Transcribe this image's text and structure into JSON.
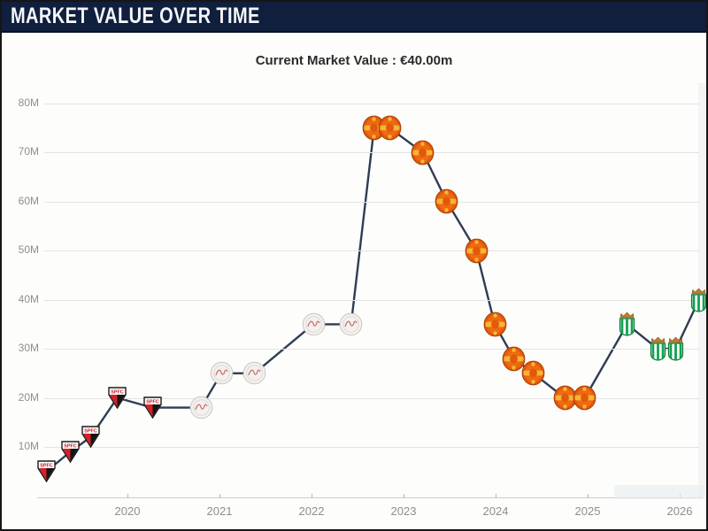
{
  "header": {
    "title": "MARKET VALUE OVER TIME"
  },
  "subtitle": {
    "text": "Current Market Value : €40.00m"
  },
  "colors": {
    "titlebar_bg": "#101f3d",
    "titlebar_text": "#f5f6f8",
    "line": "#2e3d52",
    "grid": "#e3e3e3",
    "axis_text": "#8e8e8e"
  },
  "chart_data": {
    "type": "line",
    "title": "Market value over time",
    "currency": "EUR",
    "current_value_m": 40,
    "grid": true,
    "legend": "none",
    "xlabel": "",
    "ylabel": "",
    "ylim": [
      0,
      85
    ],
    "y_axis": {
      "ticks": [
        {
          "label": "80M",
          "value": 80
        },
        {
          "label": "70M",
          "value": 70
        },
        {
          "label": "60M",
          "value": 60
        },
        {
          "label": "50M",
          "value": 50
        },
        {
          "label": "40M",
          "value": 40
        },
        {
          "label": "30M",
          "value": 30
        },
        {
          "label": "20M",
          "value": 20
        },
        {
          "label": "10M",
          "value": 10
        }
      ]
    },
    "x_axis": {
      "ticks": [
        {
          "label": "2020",
          "year": 2020
        },
        {
          "label": "2021",
          "year": 2021
        },
        {
          "label": "2022",
          "year": 2022
        },
        {
          "label": "2023",
          "year": 2023
        },
        {
          "label": "2024",
          "year": 2024
        },
        {
          "label": "2025",
          "year": 2025
        },
        {
          "label": "2026",
          "year": 2026
        }
      ]
    },
    "series": [
      {
        "name": "market-value-eur-m",
        "points": [
          {
            "year": 2019.12,
            "value_m": 5,
            "club": "sao-paulo-fc"
          },
          {
            "year": 2019.38,
            "value_m": 9,
            "club": "sao-paulo-fc"
          },
          {
            "year": 2019.6,
            "value_m": 12,
            "club": "sao-paulo-fc"
          },
          {
            "year": 2019.89,
            "value_m": 20,
            "club": "sao-paulo-fc"
          },
          {
            "year": 2020.27,
            "value_m": 18,
            "club": "sao-paulo-fc"
          },
          {
            "year": 2020.8,
            "value_m": 18,
            "club": "ajax"
          },
          {
            "year": 2021.02,
            "value_m": 25,
            "club": "ajax"
          },
          {
            "year": 2021.38,
            "value_m": 25,
            "club": "ajax"
          },
          {
            "year": 2022.02,
            "value_m": 35,
            "club": "ajax"
          },
          {
            "year": 2022.43,
            "value_m": 35,
            "club": "ajax"
          },
          {
            "year": 2022.68,
            "value_m": 75,
            "club": "manchester-united"
          },
          {
            "year": 2022.85,
            "value_m": 75,
            "club": "manchester-united"
          },
          {
            "year": 2023.21,
            "value_m": 70,
            "club": "manchester-united"
          },
          {
            "year": 2023.47,
            "value_m": 60,
            "club": "manchester-united"
          },
          {
            "year": 2023.79,
            "value_m": 50,
            "club": "manchester-united"
          },
          {
            "year": 2023.99,
            "value_m": 35,
            "club": "manchester-united"
          },
          {
            "year": 2024.2,
            "value_m": 28,
            "club": "manchester-united"
          },
          {
            "year": 2024.41,
            "value_m": 25,
            "club": "manchester-united"
          },
          {
            "year": 2024.75,
            "value_m": 20,
            "club": "manchester-united"
          },
          {
            "year": 2024.97,
            "value_m": 20,
            "club": "manchester-united"
          },
          {
            "year": 2025.43,
            "value_m": 35,
            "club": "real-betis"
          },
          {
            "year": 2025.76,
            "value_m": 30,
            "club": "real-betis"
          },
          {
            "year": 2025.96,
            "value_m": 30,
            "club": "real-betis"
          },
          {
            "year": 2026.21,
            "value_m": 40,
            "club": "real-betis"
          }
        ]
      }
    ],
    "clubs": {
      "sao-paulo-fc": {
        "name": "São Paulo FC",
        "primary": "#d42027",
        "secondary": "#141414",
        "band": "#ffffff"
      },
      "ajax": {
        "name": "Ajax Amsterdam",
        "primary": "#f3f1ee",
        "secondary": "#c25050",
        "band": "#c9c5c1"
      },
      "manchester-united": {
        "name": "Manchester United",
        "primary": "#e2590b",
        "secondary": "#f3b93c",
        "band": "#a33a00"
      },
      "real-betis": {
        "name": "Real Betis",
        "primary": "#12a150",
        "secondary": "#c07c2e",
        "band": "#ffffff"
      }
    }
  }
}
